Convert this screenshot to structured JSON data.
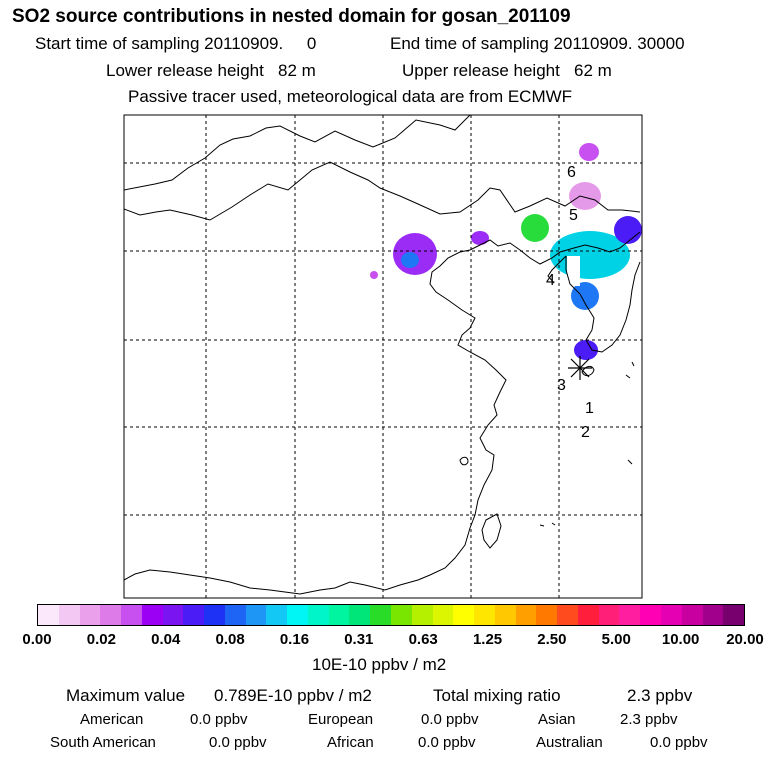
{
  "header": {
    "title": "SO2 source contributions in nested domain for gosan_201109",
    "start_label": "Start time of sampling 20110909.     0",
    "end_label": "End time of sampling 20110909. 30000",
    "lower_label": "Lower release height   82 m",
    "upper_label": "Upper release height   62 m",
    "tracer_note": "Passive tracer used, meteorological data are from ECMWF"
  },
  "map": {
    "markers": [
      {
        "label": "1"
      },
      {
        "label": "2"
      },
      {
        "label": "3"
      },
      {
        "label": "4"
      },
      {
        "label": "5"
      },
      {
        "label": "6"
      }
    ],
    "plumes": [
      {
        "level": 3
      },
      {
        "level": 5
      },
      {
        "level": 2
      },
      {
        "level": 7
      },
      {
        "level": 3
      },
      {
        "level": 6
      },
      {
        "level": 4
      },
      {
        "level": 2
      },
      {
        "level": 1
      },
      {
        "level": 5
      },
      {
        "level": 4
      }
    ]
  },
  "colorbar": {
    "colors": [
      "#fbe8fb",
      "#f3c8f3",
      "#eaa0ea",
      "#dd7ce8",
      "#c84ff0",
      "#9b00f5",
      "#7a14f0",
      "#4b1cf5",
      "#1e32f5",
      "#1e64f5",
      "#1e96f5",
      "#14c8f5",
      "#00f5f5",
      "#00f5c8",
      "#00f5a0",
      "#00e678",
      "#28dc28",
      "#78e600",
      "#b4f000",
      "#dcf500",
      "#ffff00",
      "#ffe600",
      "#ffc800",
      "#ffa000",
      "#ff7800",
      "#ff4b1e",
      "#ff1e3c",
      "#ff1e78",
      "#ff1ea0",
      "#ff00b4",
      "#e600b4",
      "#c800a0",
      "#a0008c",
      "#78006e"
    ],
    "tick_labels": [
      "0.00",
      "0.02",
      "0.04",
      "0.08",
      "0.16",
      "0.31",
      "0.63",
      "1.25",
      "2.50",
      "5.00",
      "10.00",
      "20.00"
    ],
    "unit_label": "10E-10 ppbv / m2"
  },
  "stats": {
    "max_label": "Maximum value",
    "max_value": "0.789E-10 ppbv / m2",
    "total_label": "Total mixing ratio",
    "total_value": "2.3 ppbv",
    "regions": [
      {
        "name": "American",
        "value": "0.0 ppbv"
      },
      {
        "name": "European",
        "value": "0.0 ppbv"
      },
      {
        "name": "Asian",
        "value": "2.3 ppbv"
      },
      {
        "name": "South American",
        "value": "0.0 ppbv"
      },
      {
        "name": "African",
        "value": "0.0 ppbv"
      },
      {
        "name": "Australian",
        "value": "0.0 ppbv"
      }
    ]
  }
}
